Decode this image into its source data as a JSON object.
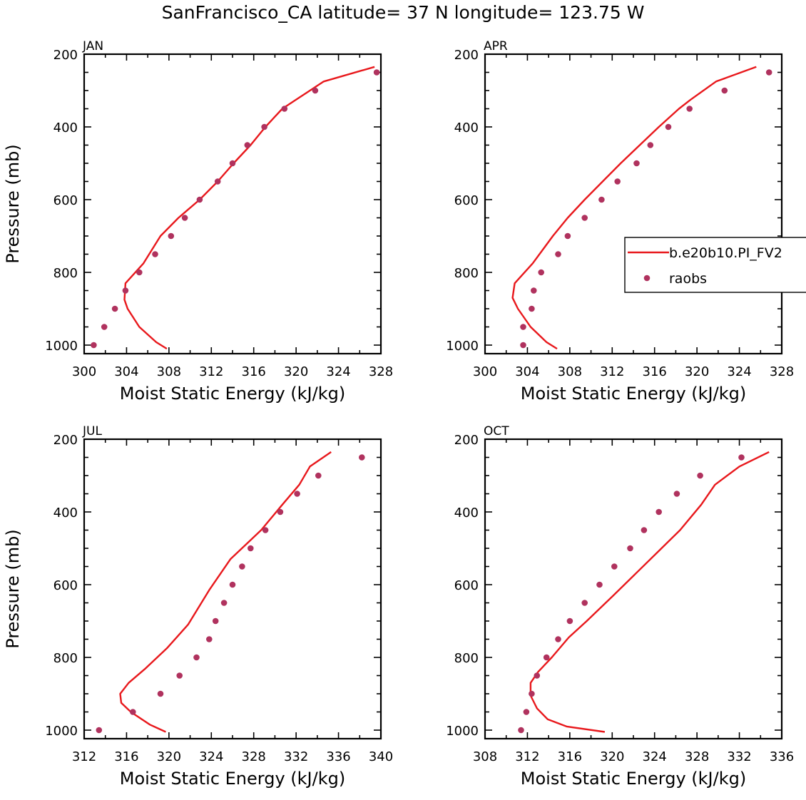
{
  "title": "SanFrancisco_CA  latitude= 37 N longitude= 123.75 W",
  "colors": {
    "model": "#e8181c",
    "obs": "#b0325e",
    "axes": "#000000"
  },
  "legend": {
    "placement": "upper-right panel, right side",
    "entries": [
      {
        "label": "b.e20b10.PI_FV2",
        "style": "line",
        "color": "#e8181c"
      },
      {
        "label": "raobs",
        "style": "marker",
        "color": "#b0325e"
      }
    ]
  },
  "chart_data": [
    {
      "type": "line",
      "panel_label": "JAN",
      "xlabel": "Moist Static Energy (kJ/kg)",
      "ylabel": "Pressure (mb)",
      "xlim": [
        300,
        328
      ],
      "ylim": [
        1000,
        200
      ],
      "x_ticks": [
        300,
        304,
        308,
        312,
        316,
        320,
        324,
        328
      ],
      "y_ticks": [
        200,
        400,
        600,
        800,
        1000
      ],
      "series": [
        {
          "name": "b.e20b10.PI_FV2",
          "kind": "line",
          "points": [
            [
              307.8,
              1010
            ],
            [
              306.8,
              992
            ],
            [
              305.2,
              950
            ],
            [
              304.1,
              900
            ],
            [
              303.8,
              875
            ],
            [
              303.9,
              830
            ],
            [
              305.6,
              775
            ],
            [
              307.2,
              700
            ],
            [
              308.9,
              650
            ],
            [
              310.9,
              600
            ],
            [
              312.6,
              550
            ],
            [
              314.1,
              500
            ],
            [
              315.7,
              450
            ],
            [
              317.1,
              400
            ],
            [
              318.7,
              350
            ],
            [
              320.0,
              325
            ],
            [
              322.6,
              275
            ],
            [
              327.4,
              235
            ]
          ]
        },
        {
          "name": "raobs",
          "kind": "scatter",
          "points": [
            [
              300.9,
              1000
            ],
            [
              301.9,
              950
            ],
            [
              302.9,
              900
            ],
            [
              303.9,
              850
            ],
            [
              305.2,
              800
            ],
            [
              306.7,
              750
            ],
            [
              308.2,
              700
            ],
            [
              309.5,
              650
            ],
            [
              310.9,
              600
            ],
            [
              312.6,
              550
            ],
            [
              314.0,
              500
            ],
            [
              315.4,
              450
            ],
            [
              317.0,
              400
            ],
            [
              318.9,
              350
            ],
            [
              321.8,
              300
            ],
            [
              327.6,
              250
            ]
          ]
        }
      ]
    },
    {
      "type": "line",
      "panel_label": "APR",
      "xlabel": "Moist Static Energy (kJ/kg)",
      "ylabel": "",
      "xlim": [
        300,
        328
      ],
      "ylim": [
        1000,
        200
      ],
      "x_ticks": [
        300,
        304,
        308,
        312,
        316,
        320,
        324,
        328
      ],
      "y_ticks": [
        200,
        400,
        600,
        800,
        1000
      ],
      "series": [
        {
          "name": "b.e20b10.PI_FV2",
          "kind": "line",
          "points": [
            [
              306.8,
              1010
            ],
            [
              305.8,
              992
            ],
            [
              304.3,
              950
            ],
            [
              303.1,
              900
            ],
            [
              302.6,
              870
            ],
            [
              302.8,
              830
            ],
            [
              304.5,
              775
            ],
            [
              306.4,
              700
            ],
            [
              307.8,
              650
            ],
            [
              309.4,
              600
            ],
            [
              311.1,
              550
            ],
            [
              312.8,
              500
            ],
            [
              314.6,
              450
            ],
            [
              316.4,
              400
            ],
            [
              318.3,
              350
            ],
            [
              319.4,
              325
            ],
            [
              321.8,
              275
            ],
            [
              325.6,
              235
            ]
          ]
        },
        {
          "name": "raobs",
          "kind": "scatter",
          "points": [
            [
              303.6,
              1000
            ],
            [
              303.6,
              950
            ],
            [
              304.4,
              900
            ],
            [
              304.6,
              850
            ],
            [
              305.3,
              800
            ],
            [
              306.9,
              750
            ],
            [
              307.8,
              700
            ],
            [
              309.4,
              650
            ],
            [
              311.0,
              600
            ],
            [
              312.5,
              550
            ],
            [
              314.3,
              500
            ],
            [
              315.6,
              450
            ],
            [
              317.3,
              400
            ],
            [
              319.3,
              350
            ],
            [
              322.6,
              300
            ],
            [
              326.8,
              250
            ]
          ]
        }
      ]
    },
    {
      "type": "line",
      "panel_label": "JUL",
      "xlabel": "Moist Static Energy (kJ/kg)",
      "ylabel": "Pressure (mb)",
      "xlim": [
        312,
        340
      ],
      "ylim": [
        1000,
        200
      ],
      "x_ticks": [
        312,
        316,
        320,
        324,
        328,
        332,
        336,
        340
      ],
      "y_ticks": [
        200,
        400,
        600,
        800,
        1000
      ],
      "series": [
        {
          "name": "b.e20b10.PI_FV2",
          "kind": "line",
          "points": [
            [
              319.7,
              1005
            ],
            [
              318.2,
              985
            ],
            [
              316.4,
              950
            ],
            [
              315.5,
              925
            ],
            [
              315.4,
              900
            ],
            [
              316.2,
              870
            ],
            [
              317.8,
              830
            ],
            [
              319.8,
              775
            ],
            [
              321.8,
              710
            ],
            [
              323.8,
              615
            ],
            [
              325.8,
              530
            ],
            [
              328.7,
              450
            ],
            [
              330.7,
              380
            ],
            [
              332.3,
              325
            ],
            [
              333.3,
              275
            ],
            [
              335.3,
              235
            ]
          ]
        },
        {
          "name": "raobs",
          "kind": "scatter",
          "points": [
            [
              313.4,
              1000
            ],
            [
              316.6,
              950
            ],
            [
              319.2,
              900
            ],
            [
              321.0,
              850
            ],
            [
              322.6,
              800
            ],
            [
              323.8,
              750
            ],
            [
              324.4,
              700
            ],
            [
              325.2,
              650
            ],
            [
              326.0,
              600
            ],
            [
              326.9,
              550
            ],
            [
              327.7,
              500
            ],
            [
              329.1,
              450
            ],
            [
              330.5,
              400
            ],
            [
              332.1,
              350
            ],
            [
              334.1,
              300
            ],
            [
              338.2,
              250
            ]
          ]
        }
      ]
    },
    {
      "type": "line",
      "panel_label": "OCT",
      "xlabel": "Moist Static Energy (kJ/kg)",
      "ylabel": "",
      "xlim": [
        308,
        336
      ],
      "ylim": [
        1000,
        200
      ],
      "x_ticks": [
        308,
        312,
        316,
        320,
        324,
        328,
        332,
        336
      ],
      "y_ticks": [
        200,
        400,
        600,
        800,
        1000
      ],
      "series": [
        {
          "name": "b.e20b10.PI_FV2",
          "kind": "line",
          "points": [
            [
              319.3,
              1005
            ],
            [
              315.7,
              990
            ],
            [
              313.9,
              970
            ],
            [
              312.9,
              940
            ],
            [
              312.3,
              905
            ],
            [
              312.3,
              870
            ],
            [
              313.0,
              840
            ],
            [
              314.3,
              800
            ],
            [
              315.9,
              745
            ],
            [
              317.6,
              700
            ],
            [
              320.1,
              630
            ],
            [
              322.2,
              570
            ],
            [
              324.3,
              510
            ],
            [
              326.4,
              450
            ],
            [
              328.4,
              380
            ],
            [
              329.7,
              325
            ],
            [
              332.0,
              275
            ],
            [
              334.8,
              235
            ]
          ]
        },
        {
          "name": "raobs",
          "kind": "scatter",
          "points": [
            [
              311.4,
              1000
            ],
            [
              311.9,
              950
            ],
            [
              312.4,
              900
            ],
            [
              312.9,
              850
            ],
            [
              313.8,
              800
            ],
            [
              314.9,
              750
            ],
            [
              316.0,
              700
            ],
            [
              317.4,
              650
            ],
            [
              318.8,
              600
            ],
            [
              320.2,
              550
            ],
            [
              321.7,
              500
            ],
            [
              323.0,
              450
            ],
            [
              324.4,
              400
            ],
            [
              326.1,
              350
            ],
            [
              328.3,
              300
            ],
            [
              332.2,
              250
            ]
          ]
        }
      ]
    }
  ]
}
